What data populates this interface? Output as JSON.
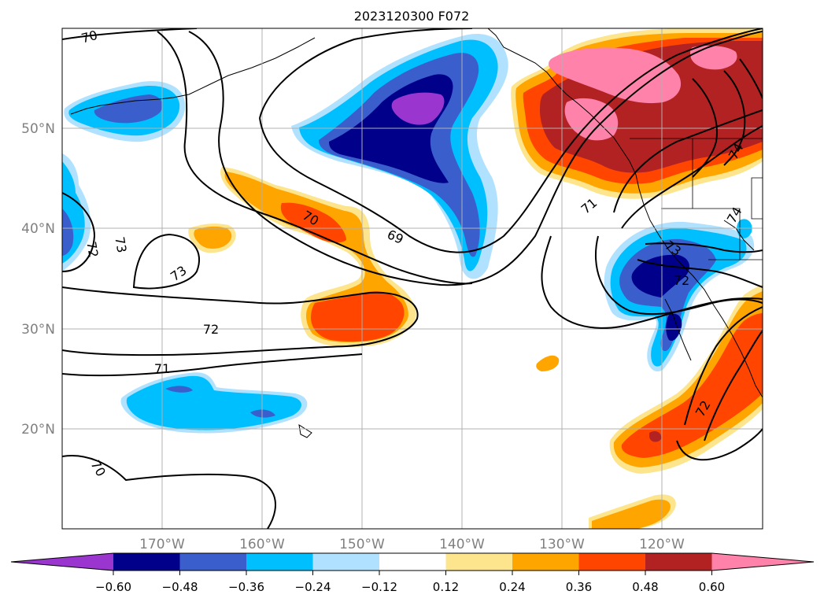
{
  "title": "2023120300 F072",
  "lat_labels": [
    "50°N",
    "40°N",
    "30°N",
    "20°N"
  ],
  "lon_labels": [
    "170°W",
    "160°W",
    "150°W",
    "140°W",
    "130°W",
    "120°W"
  ],
  "colorbar": {
    "colors": [
      "#9a35cf",
      "#00008b",
      "#3a5fcd",
      "#00bfff",
      "#b0e2ff",
      "#ffffff",
      "#fde58d",
      "#ffa500",
      "#ff4500",
      "#b22222",
      "#ff82ab"
    ],
    "ticks": [
      "−0.60",
      "−0.48",
      "−0.36",
      "−0.24",
      "−0.12",
      "0.12",
      "0.24",
      "0.36",
      "0.48",
      "0.60"
    ]
  },
  "contour_labels": [
    "70",
    "73",
    "72",
    "71",
    "70",
    "70",
    "69",
    "71",
    "73",
    "72",
    "72",
    "74",
    "74",
    "72",
    "73"
  ],
  "colors": {
    "grid": "#b0b0b0",
    "axis_label": "#808080",
    "contour": "#000000"
  }
}
